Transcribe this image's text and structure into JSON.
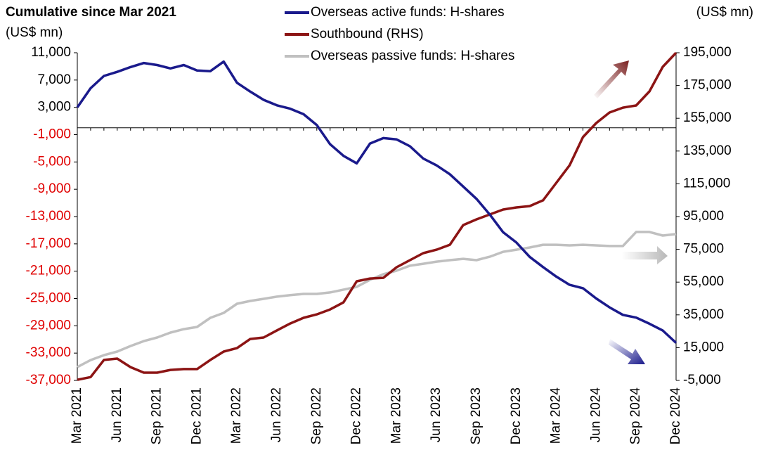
{
  "chart_data": {
    "type": "line",
    "title": "Cumulative since Mar 2021",
    "y_label": "(US$ mn)",
    "y2_label": "(US$ mn)",
    "categories": [
      "Mar 2021",
      null,
      null,
      "Jun 2021",
      null,
      null,
      "Sep 2021",
      null,
      null,
      "Dec 2021",
      null,
      null,
      "Mar 2022",
      null,
      null,
      "Jun 2022",
      null,
      null,
      "Sep 2022",
      null,
      null,
      "Dec 2022",
      null,
      null,
      "Mar 2023",
      null,
      null,
      "Jun 2023",
      null,
      null,
      "Sep 2023",
      null,
      null,
      "Dec 2023",
      null,
      null,
      "Mar 2024",
      null,
      null,
      "Jun 2024",
      null,
      null,
      "Sep 2024",
      null,
      null,
      "Dec 2024"
    ],
    "series": [
      {
        "name": "Overseas active funds: H-shares",
        "color": "#1a1a8c",
        "values": [
          3000,
          5800,
          7600,
          8200,
          8900,
          9500,
          9200,
          8700,
          9200,
          8400,
          8300,
          9700,
          6600,
          5300,
          4100,
          3300,
          2800,
          2000,
          400,
          -2400,
          -4100,
          -5200,
          -2300,
          -1500,
          -1700,
          -2700,
          -4500,
          -5500,
          -6800,
          -8600,
          -10400,
          -12700,
          -15300,
          -16800,
          -18900,
          -20400,
          -21800,
          -23000,
          -23500,
          -25000,
          -26300,
          -27400,
          -27800,
          -28700,
          -29700,
          -31500
        ]
      },
      {
        "name": "Southbound (RHS)",
        "color": "#8c1414",
        "axis": "y2",
        "values": [
          -4600,
          -3000,
          7500,
          8300,
          3100,
          -300,
          -300,
          1400,
          1900,
          1900,
          7500,
          12600,
          14700,
          20300,
          21200,
          25500,
          29700,
          33200,
          35300,
          38300,
          42600,
          55500,
          57200,
          57600,
          64100,
          68400,
          72700,
          74800,
          77800,
          89800,
          93300,
          96300,
          99300,
          100600,
          101400,
          104900,
          115600,
          126300,
          143500,
          152100,
          158500,
          161500,
          162800,
          171400,
          186400,
          195000
        ]
      },
      {
        "name": "Overseas passive funds: H-shares",
        "color": "#c0c0c0",
        "axis": "y2",
        "values": [
          3100,
          7400,
          10400,
          12600,
          16000,
          19000,
          21200,
          24200,
          26300,
          27600,
          33200,
          36200,
          41800,
          43500,
          44800,
          46100,
          47000,
          47800,
          47800,
          48700,
          50400,
          52100,
          56400,
          59800,
          62000,
          65000,
          66200,
          67500,
          68400,
          69200,
          68400,
          70500,
          73500,
          74800,
          76100,
          77800,
          77800,
          77400,
          77800,
          77400,
          77000,
          77000,
          85600,
          85600,
          83400,
          84300
        ]
      }
    ],
    "ylim": [
      -37000,
      11000
    ],
    "yticks": [
      {
        "value": 11000,
        "label": "11,000"
      },
      {
        "value": 7000,
        "label": "7,000"
      },
      {
        "value": 3000,
        "label": "3,000"
      },
      {
        "value": -1000,
        "label": "-1,000"
      },
      {
        "value": -5000,
        "label": "-5,000"
      },
      {
        "value": -9000,
        "label": "-9,000"
      },
      {
        "value": -13000,
        "label": "-13,000"
      },
      {
        "value": -17000,
        "label": "-17,000"
      },
      {
        "value": -21000,
        "label": "-21,000"
      },
      {
        "value": -25000,
        "label": "-25,000"
      },
      {
        "value": -29000,
        "label": "-29,000"
      },
      {
        "value": -33000,
        "label": "-33,000"
      },
      {
        "value": -37000,
        "label": "-37,000"
      }
    ],
    "y2lim": [
      -5000,
      195000
    ],
    "y2ticks": [
      {
        "value": 195000,
        "label": "195,000"
      },
      {
        "value": 175000,
        "label": "175,000"
      },
      {
        "value": 155000,
        "label": "155,000"
      },
      {
        "value": 135000,
        "label": "135,000"
      },
      {
        "value": 115000,
        "label": "115,000"
      },
      {
        "value": 95000,
        "label": "95,000"
      },
      {
        "value": 75000,
        "label": "75,000"
      },
      {
        "value": 55000,
        "label": "55,000"
      },
      {
        "value": 35000,
        "label": "35,000"
      },
      {
        "value": 15000,
        "label": "15,000"
      },
      {
        "value": {
          "value": -5000
        },
        "label": "-5,000"
      }
    ],
    "negative_tick_color": "#e00000",
    "grid": false
  }
}
